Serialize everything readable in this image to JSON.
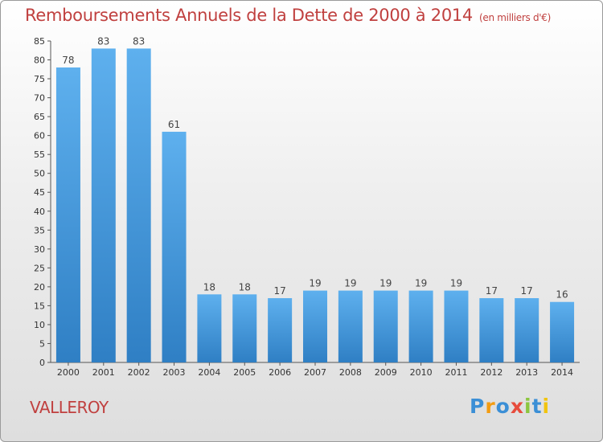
{
  "header": {
    "title": "Remboursements Annuels de la Dette de 2000 à 2014",
    "unit": "(en milliers d'€)"
  },
  "footer": {
    "city": "VALLEROY",
    "logo_letters": [
      "P",
      "r",
      "o",
      "x",
      "i",
      "t",
      "i"
    ],
    "logo_colors": [
      "#3b8fd6",
      "#f39c12",
      "#3b8fd6",
      "#e74c3c",
      "#8cc63f",
      "#3b8fd6",
      "#f1c40f"
    ]
  },
  "chart_data": {
    "type": "bar",
    "title": "Remboursements Annuels de la Dette de 2000 à 2014",
    "categories": [
      "2000",
      "2001",
      "2002",
      "2003",
      "2004",
      "2005",
      "2006",
      "2007",
      "2008",
      "2009",
      "2010",
      "2011",
      "2012",
      "2013",
      "2014"
    ],
    "values": [
      78,
      83,
      83,
      61,
      18,
      18,
      17,
      19,
      19,
      19,
      19,
      19,
      17,
      17,
      16
    ],
    "ylim": [
      0,
      85
    ],
    "yticks": [
      0,
      5,
      10,
      15,
      20,
      25,
      30,
      35,
      40,
      45,
      50,
      55,
      60,
      65,
      70,
      75,
      80,
      85
    ],
    "grid": false,
    "bar_color": "#4a9fe0"
  }
}
